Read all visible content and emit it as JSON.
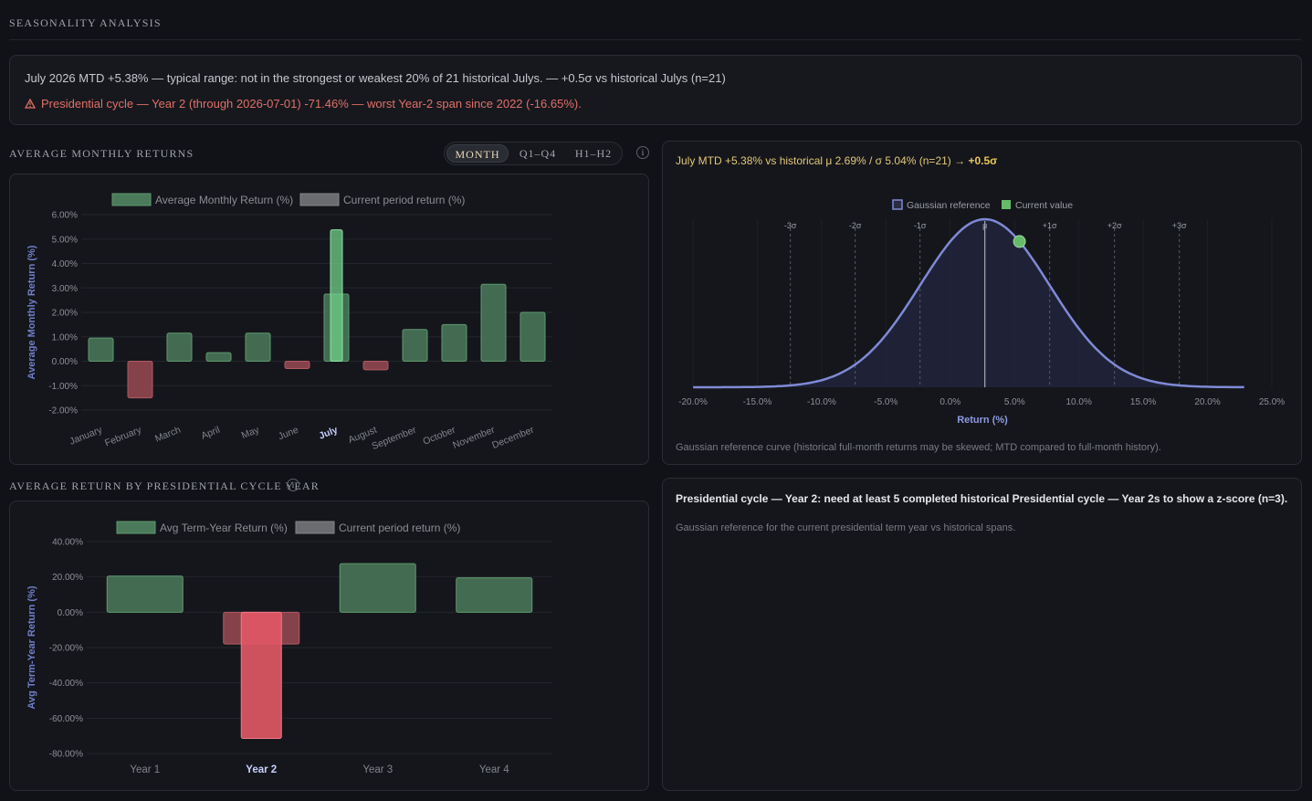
{
  "page": {
    "title": "SEASONALITY ANALYSIS"
  },
  "summary": {
    "line1": "July 2026 MTD +5.38% — typical range: not in the strongest or weakest 20% of 21 historical Julys. — +0.5σ vs historical Julys (n=21)",
    "warning_icon": "warning-triangle-icon",
    "line2": "Presidential cycle — Year 2 (through 2026-07-01) -71.46% — worst Year-2 span since 2022 (-16.65%)."
  },
  "monthly": {
    "section_title": "AVERAGE MONTHLY RETURNS",
    "toggle": [
      "MONTH",
      "Q1–Q4",
      "H1–H2"
    ],
    "toggle_active": "MONTH",
    "info_icon": "i"
  },
  "cycle": {
    "section_title": "AVERAGE RETURN BY PRESIDENTIAL CYCLE YEAR",
    "info_icon": "i"
  },
  "gaussian": {
    "headline_prefix": "July MTD +5.38% vs historical μ 2.69% / σ 5.04% (n=21) → ",
    "headline_z": "+0.5σ",
    "caption": "Gaussian reference curve (historical full-month returns may be skewed; MTD compared to full-month history)."
  },
  "cycle_panel": {
    "headline": "Presidential cycle — Year 2: need at least 5 completed historical Presidential cycle — Year 2s to show a z-score (n=3).",
    "caption": "Gaussian reference for the current presidential term year vs historical spans."
  },
  "colors": {
    "positive_bar": "#4a7a5a",
    "negative_bar": "#9a4a52",
    "current_positive": "#6fd08a",
    "current_negative": "#e25866",
    "gaussian_line": "#7f8ad6",
    "current_value_dot": "#66bb6a",
    "accent_gold": "#e7c55c",
    "warning": "#e07067"
  },
  "chart_data": [
    {
      "type": "bar",
      "categories": [
        "January",
        "February",
        "March",
        "April",
        "May",
        "June",
        "July",
        "August",
        "September",
        "October",
        "November",
        "December"
      ],
      "highlight_category": "July",
      "series": [
        {
          "name": "Average Monthly Return (%)",
          "values": [
            0.95,
            -1.5,
            1.15,
            0.35,
            1.15,
            -0.3,
            2.75,
            -0.35,
            1.3,
            1.5,
            3.15,
            2.0
          ]
        },
        {
          "name": "Current period return (%)",
          "values": [
            null,
            null,
            null,
            null,
            null,
            null,
            5.38,
            null,
            null,
            null,
            null,
            null
          ]
        }
      ],
      "ylabel": "Average Monthly Return (%)",
      "ylim": [
        -2,
        6
      ],
      "yticks": [
        "6.00%",
        "5.00%",
        "4.00%",
        "3.00%",
        "2.00%",
        "1.00%",
        "0.00%",
        "-1.00%",
        "-2.00%"
      ],
      "legend_position": "top"
    },
    {
      "type": "bar",
      "categories": [
        "Year 1",
        "Year 2",
        "Year 3",
        "Year 4"
      ],
      "highlight_category": "Year 2",
      "series": [
        {
          "name": "Avg Term-Year Return (%)",
          "values": [
            20.5,
            -18.0,
            27.5,
            19.5
          ]
        },
        {
          "name": "Current period return (%)",
          "values": [
            null,
            -71.46,
            null,
            null
          ]
        }
      ],
      "ylabel": "Avg Term-Year Return (%)",
      "ylim": [
        -80,
        40
      ],
      "yticks": [
        "40.00%",
        "20.00%",
        "0.00%",
        "-20.00%",
        "-40.00%",
        "-60.00%",
        "-80.00%"
      ],
      "legend_position": "top"
    },
    {
      "type": "line",
      "title": "",
      "xlabel": "Return (%)",
      "xlim": [
        -20,
        25
      ],
      "xticks": [
        "-20.0%",
        "-15.0%",
        "-10.0%",
        "-5.0%",
        "0.0%",
        "5.0%",
        "10.0%",
        "15.0%",
        "20.0%",
        "25.0%"
      ],
      "mean": 2.69,
      "sigma": 5.04,
      "current_value": 5.38,
      "sigma_labels": [
        "-3σ",
        "-2σ",
        "-1σ",
        "μ",
        "+1σ",
        "+2σ",
        "+3σ"
      ],
      "series": [
        {
          "name": "Gaussian reference"
        },
        {
          "name": "Current value"
        }
      ],
      "legend_position": "top"
    }
  ]
}
